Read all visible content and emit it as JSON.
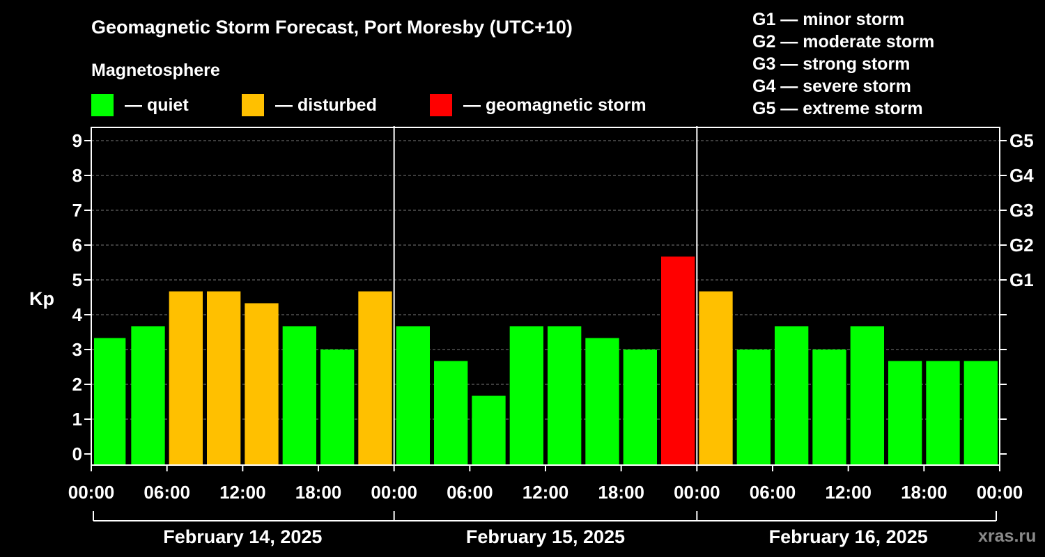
{
  "header": {
    "title": "Geomagnetic Storm Forecast, Port Moresby (UTC+10)",
    "subtitle": "Magnetosphere"
  },
  "legend": [
    {
      "label": "— quiet",
      "color": "#00ff00"
    },
    {
      "label": "— disturbed",
      "color": "#ffc000"
    },
    {
      "label": "— geomagnetic storm",
      "color": "#ff0000"
    }
  ],
  "storm_scale": [
    "G1 — minor storm",
    "G2 — moderate storm",
    "G3 — strong storm",
    "G4 — severe storm",
    "G5 — extreme storm"
  ],
  "watermark": "xras.ru",
  "chart_data": {
    "type": "bar",
    "ylabel": "Kp",
    "ylim": [
      0,
      9
    ],
    "y_ticks": [
      "0",
      "1",
      "2",
      "3",
      "4",
      "5",
      "6",
      "7",
      "8",
      "9"
    ],
    "right_axis_labels": [
      {
        "kp": 5,
        "label": "G1"
      },
      {
        "kp": 6,
        "label": "G2"
      },
      {
        "kp": 7,
        "label": "G3"
      },
      {
        "kp": 8,
        "label": "G4"
      },
      {
        "kp": 9,
        "label": "G5"
      }
    ],
    "grid": "horizontal dashed",
    "x_tick_labels": [
      "00:00",
      "06:00",
      "12:00",
      "18:00",
      "00:00",
      "06:00",
      "12:00",
      "18:00",
      "00:00",
      "06:00",
      "12:00",
      "18:00",
      "00:00"
    ],
    "days": [
      "February 14, 2025",
      "February 15, 2025",
      "February 16, 2025"
    ],
    "interval_hours": 3,
    "values": [
      3.33,
      3.67,
      4.67,
      4.67,
      4.33,
      3.67,
      3.0,
      4.67,
      3.67,
      2.67,
      1.67,
      3.67,
      3.67,
      3.33,
      3.0,
      5.67,
      4.67,
      3.0,
      3.67,
      3.0,
      3.67,
      2.67,
      2.67,
      2.67
    ],
    "colors": {
      "quiet": "#00ff00",
      "disturbed": "#ffc000",
      "storm": "#ff0000"
    }
  }
}
